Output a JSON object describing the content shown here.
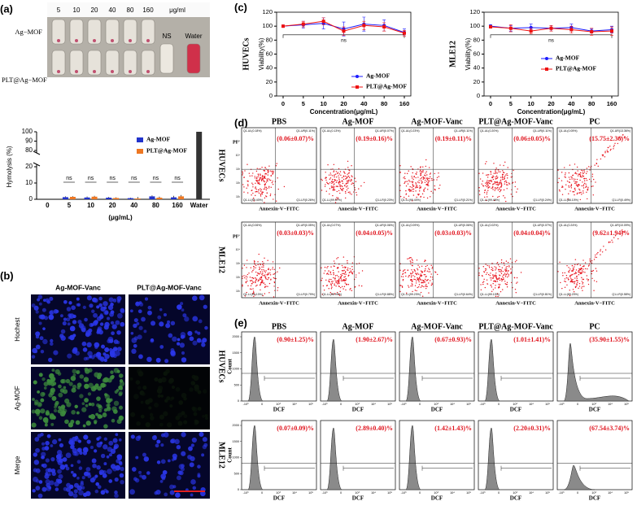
{
  "panel_labels": [
    "(a)",
    "(b)",
    "(c)",
    "(d)",
    "(e)"
  ],
  "photo": {
    "concentrations": [
      "5",
      "10",
      "20",
      "40",
      "80",
      "160"
    ],
    "unit": "μg/ml",
    "rows": [
      "Ag−MOF",
      "PLT@Ag−MOF"
    ],
    "controls": [
      "NS",
      "Water"
    ]
  },
  "chart_data": [
    {
      "type": "bar",
      "y_label": "Hymolysis (%)",
      "x_label": "(μg/mL)",
      "categories": [
        "0",
        "5",
        "10",
        "20",
        "40",
        "80",
        "160",
        "Water"
      ],
      "series": [
        {
          "name": "Ag-MOF",
          "color": "#2233cc",
          "values": [
            null,
            1.3,
            1.1,
            1.0,
            0.7,
            1.8,
            1.2,
            null
          ],
          "errors": [
            null,
            0.5,
            0.6,
            0.4,
            0.3,
            0.6,
            0.9,
            null
          ]
        },
        {
          "name": "PLT@Ag-MOF",
          "color": "#ee7722",
          "values": [
            null,
            1.5,
            1.6,
            0.8,
            0.5,
            1.0,
            1.8,
            null
          ],
          "errors": [
            null,
            0.4,
            0.5,
            0.4,
            0.9,
            0.6,
            0.8,
            null
          ]
        },
        {
          "color": "#333333",
          "values": [
            null,
            null,
            null,
            null,
            null,
            null,
            null,
            100
          ]
        }
      ],
      "annotations": [
        "ns",
        "ns",
        "ns",
        "ns",
        "ns",
        "ns"
      ],
      "ylim": [
        0,
        100
      ],
      "axis_break": [
        20,
        80
      ],
      "yticks": [
        0,
        10,
        20,
        80,
        90,
        100
      ]
    },
    {
      "type": "line",
      "title": "HUVECs",
      "y_label": "Viability(%)",
      "x_label": "Concentration(μg/mL)",
      "categories": [
        "0",
        "5",
        "10",
        "20",
        "40",
        "80",
        "160"
      ],
      "series": [
        {
          "name": "Ag-MOF",
          "color": "#1a1aff",
          "values": [
            100,
            102,
            104,
            96,
            103,
            101,
            91
          ],
          "errors": [
            1,
            5,
            8,
            10,
            10,
            8,
            5
          ]
        },
        {
          "name": "PLT@Ag-MOF",
          "color": "#ee1111",
          "values": [
            100,
            103,
            107,
            93,
            101,
            99,
            90
          ],
          "errors": [
            1,
            4,
            5,
            6,
            6,
            6,
            4
          ]
        }
      ],
      "annotation": "ns",
      "ylim": [
        0,
        120
      ],
      "yticks": [
        0,
        20,
        40,
        60,
        80,
        100,
        120
      ]
    },
    {
      "type": "line",
      "title": "MLE12",
      "y_label": "Viability(%)",
      "x_label": "Concentration(μg/mL)",
      "categories": [
        "0",
        "5",
        "10",
        "20",
        "40",
        "80",
        "160"
      ],
      "series": [
        {
          "name": "Ag-MOF",
          "color": "#1a1aff",
          "values": [
            100,
            97,
            98,
            97,
            98,
            93,
            95
          ],
          "errors": [
            2,
            4,
            5,
            4,
            5,
            3,
            5
          ]
        },
        {
          "name": "PLT@Ag-MOF",
          "color": "#ee1111",
          "values": [
            99,
            97,
            93,
            97,
            95,
            92,
            93
          ],
          "errors": [
            2,
            5,
            4,
            4,
            5,
            5,
            6
          ]
        }
      ],
      "annotation": "ns",
      "ylim": [
        0,
        120
      ],
      "yticks": [
        0,
        20,
        40,
        60,
        80,
        100,
        120
      ]
    }
  ],
  "microscopy": {
    "columns": [
      "Ag-MOF-Vanc",
      "PLT@Ag-MOF-Vanc"
    ],
    "rows": [
      "Hochest",
      "Ag-MOF",
      "Merge"
    ]
  },
  "flow": {
    "columns": [
      "PBS",
      "Ag-MOF",
      "Ag-MOF-Vanc",
      "PLT@Ag-MOF-Vanc",
      "PC"
    ],
    "rows": [
      "HUVECs",
      "MLE12"
    ],
    "x_label": "Annexin-V−FITC",
    "y_label": "PI",
    "ticks": [
      "10¹",
      "10²",
      "10³",
      "10⁴",
      "10⁵"
    ],
    "plots": [
      [
        {
          "result": "(0.06±0.07)%",
          "quadrants": [
            "Q1-UL(0.18%)",
            "Q1-UR(0.11%)",
            "Q1-LL(99.40%)",
            "Q1-LR(0.26%)"
          ]
        },
        {
          "result": "(0.19±0.16)%",
          "quadrants": [
            "Q1-UL(0.13%)",
            "Q1-UR(0.07%)",
            "Q1-LL(99.57%)",
            "Q1-LR(0.23%)"
          ]
        },
        {
          "result": "(0.19±0.11)%",
          "quadrants": [
            "Q1-UL(0.23%)",
            "Q1-UR(0.11%)",
            "Q1-LL(99.40%)",
            "Q1-LR(0.21%)"
          ]
        },
        {
          "result": "(0.06±0.05)%",
          "quadrants": [
            "Q1-UL(0.20%)",
            "Q1-UR(0.11%)",
            "Q1-LL(99.46%)",
            "Q1-LR(0.24%)"
          ]
        },
        {
          "result": "(15.75±2.36)%",
          "quadrants": [
            "Q1-UL(0.05%)",
            "Q1-UR(13.36%)",
            "Q1-LL(86.10%)",
            "Q1-LR(0.49%)"
          ]
        }
      ],
      [
        {
          "result": "(0.03±0.03)%",
          "quadrants": [
            "Q1-UL(0.06%)",
            "Q1-UR(0.05%)",
            "Q1-LL(99.10%)",
            "Q1-LR(0.79%)"
          ]
        },
        {
          "result": "(0.04±0.05)%",
          "quadrants": [
            "Q1-UL(0.07%)",
            "Q1-UR(0.06%)",
            "Q1-LL(98.99%)",
            "Q1-LR(0.88%)"
          ]
        },
        {
          "result": "(0.03±0.03)%",
          "quadrants": [
            "Q1-UL(0.09%)",
            "Q1-UR(0.06%)",
            "Q1-LL(99.23%)",
            "Q1-LR(0.64%)"
          ]
        },
        {
          "result": "(0.04±0.04)%",
          "quadrants": [
            "Q1-UL(0.02%)",
            "Q1-UR(0.07%)",
            "Q1-LL(99.10%)",
            "Q1-LR(0.81%)"
          ]
        },
        {
          "result": "(9.62±1.94)%",
          "quadrants": [
            "Q1-UL(0.24%)",
            "Q1-UR(10.09%)",
            "Q1-LL(89.20%)",
            "Q1-LR(0.58%)"
          ]
        }
      ]
    ]
  },
  "histograms": {
    "x_label": "DCF",
    "y_label": "Count",
    "xticks": [
      "-10³",
      "0",
      "10³",
      "10⁴",
      "10⁵"
    ],
    "yticks": [
      0,
      500,
      1000,
      1500,
      2000
    ],
    "results": [
      [
        "(0.90±1.25)%",
        "(1.90±2.67)%",
        "(0.67±0.93)%",
        "(1.01±1.41)%",
        "(35.90±1.55)%"
      ],
      [
        "(0.07±0.09)%",
        "(2.89±0.40)%",
        "(1.42±1.43)%",
        "(2.20±0.31)%",
        "(67.54±3.74)%"
      ]
    ]
  }
}
